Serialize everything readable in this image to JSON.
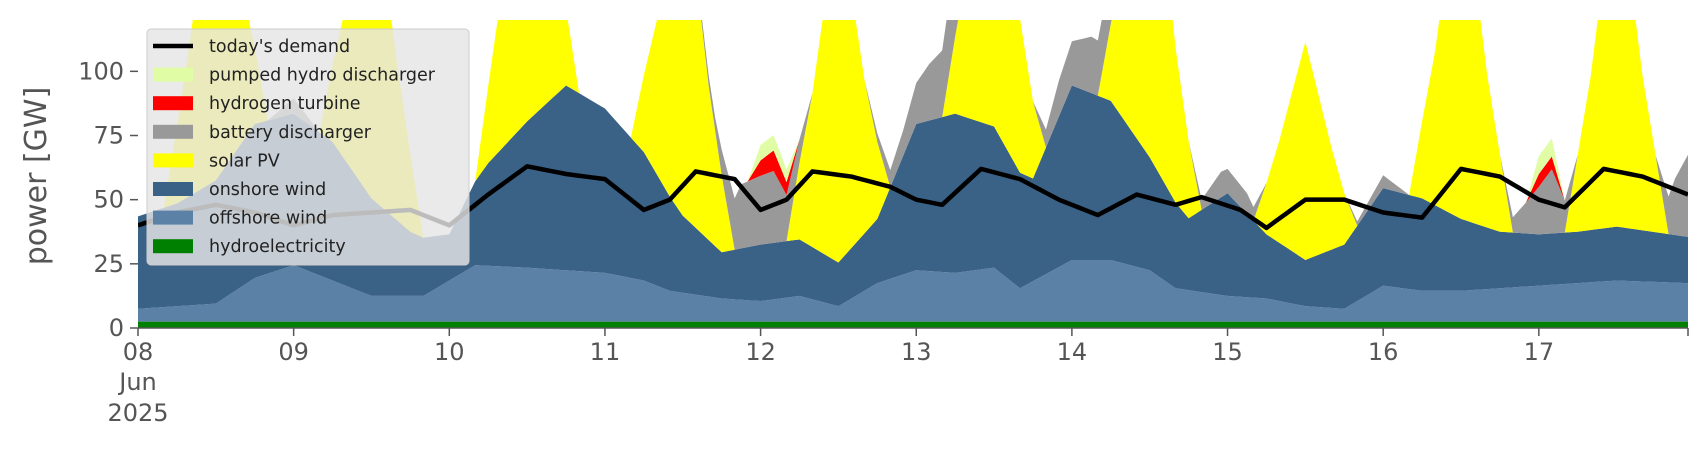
{
  "chart_data": {
    "type": "area",
    "stacked": true,
    "title": "",
    "xlabel": "",
    "ylabel": "power [GW]",
    "x_start": "2025-06-08T00:00",
    "x_end": "2025-06-17T23:00",
    "xlim": [
      "2025-06-08",
      "2025-06-17T23:00"
    ],
    "ylim": [
      0,
      120
    ],
    "yticks": [
      0,
      25,
      50,
      75,
      100
    ],
    "xtick_labels": [
      {
        "date": "2025-06-08",
        "label": "08",
        "sublabel": "Jun",
        "sublabel2": "2025"
      },
      {
        "date": "2025-06-09",
        "label": "09"
      },
      {
        "date": "2025-06-10",
        "label": "10"
      },
      {
        "date": "2025-06-11",
        "label": "11"
      },
      {
        "date": "2025-06-12",
        "label": "12"
      },
      {
        "date": "2025-06-13",
        "label": "13"
      },
      {
        "date": "2025-06-14",
        "label": "14"
      },
      {
        "date": "2025-06-15",
        "label": "15"
      },
      {
        "date": "2025-06-16",
        "label": "16"
      },
      {
        "date": "2025-06-17",
        "label": "17"
      }
    ],
    "grid": false,
    "legend_position": "top-left",
    "series": [
      {
        "name": "hydroelectricity",
        "color": "#008000",
        "points": [
          [
            "2025-06-08T00:00",
            2.5
          ],
          [
            "2025-06-17T23:00",
            2.5
          ]
        ]
      },
      {
        "name": "offshore wind",
        "color": "#5b82a6",
        "points": [
          [
            "2025-06-08T00:00",
            5
          ],
          [
            "2025-06-08T12:00",
            7
          ],
          [
            "2025-06-08T18:00",
            17
          ],
          [
            "2025-06-09T00:00",
            22
          ],
          [
            "2025-06-09T06:00",
            16
          ],
          [
            "2025-06-09T12:00",
            10
          ],
          [
            "2025-06-09T20:00",
            10
          ],
          [
            "2025-06-10T04:00",
            22
          ],
          [
            "2025-06-10T12:00",
            21
          ],
          [
            "2025-06-10T18:00",
            20
          ],
          [
            "2025-06-11T00:00",
            19
          ],
          [
            "2025-06-11T06:00",
            16
          ],
          [
            "2025-06-11T10:00",
            12
          ],
          [
            "2025-06-11T18:00",
            9
          ],
          [
            "2025-06-12T00:00",
            8
          ],
          [
            "2025-06-12T06:00",
            10
          ],
          [
            "2025-06-12T12:00",
            6
          ],
          [
            "2025-06-12T18:00",
            15
          ],
          [
            "2025-06-13T00:00",
            20
          ],
          [
            "2025-06-13T06:00",
            19
          ],
          [
            "2025-06-13T12:00",
            21
          ],
          [
            "2025-06-13T16:00",
            13
          ],
          [
            "2025-06-14T00:00",
            24
          ],
          [
            "2025-06-14T06:00",
            24
          ],
          [
            "2025-06-14T12:00",
            20
          ],
          [
            "2025-06-14T16:00",
            13
          ],
          [
            "2025-06-15T00:00",
            10
          ],
          [
            "2025-06-15T06:00",
            9
          ],
          [
            "2025-06-15T12:00",
            6
          ],
          [
            "2025-06-15T18:00",
            5
          ],
          [
            "2025-06-16T00:00",
            14
          ],
          [
            "2025-06-16T06:00",
            12
          ],
          [
            "2025-06-16T12:00",
            12
          ],
          [
            "2025-06-17T00:00",
            14
          ],
          [
            "2025-06-17T06:00",
            15
          ],
          [
            "2025-06-17T12:00",
            16
          ],
          [
            "2025-06-17T23:00",
            15
          ]
        ]
      },
      {
        "name": "onshore wind",
        "color": "#3a6186",
        "points": [
          [
            "2025-06-08T00:00",
            36
          ],
          [
            "2025-06-08T06:00",
            40
          ],
          [
            "2025-06-08T12:00",
            48
          ],
          [
            "2025-06-08T18:00",
            60
          ],
          [
            "2025-06-09T00:00",
            59
          ],
          [
            "2025-06-09T06:00",
            54
          ],
          [
            "2025-06-09T12:00",
            38
          ],
          [
            "2025-06-09T18:00",
            25
          ],
          [
            "2025-06-10T00:00",
            18
          ],
          [
            "2025-06-10T06:00",
            40
          ],
          [
            "2025-06-10T12:00",
            57
          ],
          [
            "2025-06-10T18:00",
            72
          ],
          [
            "2025-06-11T00:00",
            64
          ],
          [
            "2025-06-11T06:00",
            50
          ],
          [
            "2025-06-11T12:00",
            30
          ],
          [
            "2025-06-11T18:00",
            18
          ],
          [
            "2025-06-12T00:00",
            22
          ],
          [
            "2025-06-12T06:00",
            22
          ],
          [
            "2025-06-12T12:00",
            17
          ],
          [
            "2025-06-12T18:00",
            25
          ],
          [
            "2025-06-13T00:00",
            57
          ],
          [
            "2025-06-13T06:00",
            62
          ],
          [
            "2025-06-13T12:00",
            55
          ],
          [
            "2025-06-13T18:00",
            40
          ],
          [
            "2025-06-14T00:00",
            68
          ],
          [
            "2025-06-14T06:00",
            62
          ],
          [
            "2025-06-14T12:00",
            44
          ],
          [
            "2025-06-14T18:00",
            28
          ],
          [
            "2025-06-15T00:00",
            40
          ],
          [
            "2025-06-15T06:00",
            25
          ],
          [
            "2025-06-15T12:00",
            18
          ],
          [
            "2025-06-15T18:00",
            25
          ],
          [
            "2025-06-16T00:00",
            38
          ],
          [
            "2025-06-16T06:00",
            36
          ],
          [
            "2025-06-16T12:00",
            28
          ],
          [
            "2025-06-16T18:00",
            22
          ],
          [
            "2025-06-17T00:00",
            20
          ],
          [
            "2025-06-17T06:00",
            20
          ],
          [
            "2025-06-17T12:00",
            21
          ],
          [
            "2025-06-17T23:00",
            18
          ]
        ]
      },
      {
        "name": "solar PV",
        "color": "#ffff00",
        "points": [
          [
            "2025-06-08T00:00",
            0
          ],
          [
            "2025-06-08T04:00",
            0
          ],
          [
            "2025-06-08T08:00",
            60
          ],
          [
            "2025-06-08T12:00",
            130
          ],
          [
            "2025-06-08T16:00",
            60
          ],
          [
            "2025-06-08T20:00",
            0
          ],
          [
            "2025-06-09T04:00",
            0
          ],
          [
            "2025-06-09T08:00",
            60
          ],
          [
            "2025-06-09T12:00",
            130
          ],
          [
            "2025-06-09T16:00",
            60
          ],
          [
            "2025-06-09T20:00",
            0
          ],
          [
            "2025-06-10T04:00",
            0
          ],
          [
            "2025-06-10T08:00",
            60
          ],
          [
            "2025-06-10T12:00",
            140
          ],
          [
            "2025-06-10T16:00",
            60
          ],
          [
            "2025-06-10T20:00",
            0
          ],
          [
            "2025-06-11T04:00",
            0
          ],
          [
            "2025-06-11T08:00",
            60
          ],
          [
            "2025-06-11T12:00",
            140
          ],
          [
            "2025-06-11T16:00",
            60
          ],
          [
            "2025-06-11T20:00",
            0
          ],
          [
            "2025-06-12T04:00",
            0
          ],
          [
            "2025-06-12T08:00",
            60
          ],
          [
            "2025-06-12T12:00",
            140
          ],
          [
            "2025-06-12T16:00",
            60
          ],
          [
            "2025-06-12T20:00",
            0
          ],
          [
            "2025-06-13T04:00",
            0
          ],
          [
            "2025-06-13T08:00",
            60
          ],
          [
            "2025-06-13T12:00",
            140
          ],
          [
            "2025-06-13T16:00",
            60
          ],
          [
            "2025-06-13T20:00",
            0
          ],
          [
            "2025-06-14T04:00",
            0
          ],
          [
            "2025-06-14T08:00",
            60
          ],
          [
            "2025-06-14T12:00",
            140
          ],
          [
            "2025-06-14T16:00",
            60
          ],
          [
            "2025-06-14T20:00",
            0
          ],
          [
            "2025-06-15T04:00",
            0
          ],
          [
            "2025-06-15T08:00",
            40
          ],
          [
            "2025-06-15T12:00",
            85
          ],
          [
            "2025-06-15T16:00",
            40
          ],
          [
            "2025-06-15T20:00",
            0
          ],
          [
            "2025-06-16T04:00",
            0
          ],
          [
            "2025-06-16T08:00",
            60
          ],
          [
            "2025-06-16T12:00",
            140
          ],
          [
            "2025-06-16T16:00",
            60
          ],
          [
            "2025-06-16T20:00",
            0
          ],
          [
            "2025-06-17T04:00",
            0
          ],
          [
            "2025-06-17T08:00",
            60
          ],
          [
            "2025-06-17T12:00",
            140
          ],
          [
            "2025-06-17T16:00",
            60
          ],
          [
            "2025-06-17T20:00",
            0
          ],
          [
            "2025-06-17T23:00",
            0
          ]
        ]
      },
      {
        "name": "battery discharger",
        "color": "#999999",
        "points": [
          [
            "2025-06-08T00:00",
            0
          ],
          [
            "2025-06-08T20:00",
            0
          ],
          [
            "2025-06-09T00:00",
            6
          ],
          [
            "2025-06-09T04:00",
            0
          ],
          [
            "2025-06-11T12:00",
            0
          ],
          [
            "2025-06-11T17:00",
            5
          ],
          [
            "2025-06-11T21:00",
            25
          ],
          [
            "2025-06-12T02:00",
            28
          ],
          [
            "2025-06-12T04:00",
            18
          ],
          [
            "2025-06-12T08:00",
            0
          ],
          [
            "2025-06-12T16:00",
            0
          ],
          [
            "2025-06-12T22:00",
            10
          ],
          [
            "2025-06-13T02:00",
            22
          ],
          [
            "2025-06-13T06:00",
            30
          ],
          [
            "2025-06-13T09:00",
            0
          ],
          [
            "2025-06-13T18:00",
            0
          ],
          [
            "2025-06-13T22:00",
            14
          ],
          [
            "2025-06-14T03:00",
            22
          ],
          [
            "2025-06-14T07:00",
            20
          ],
          [
            "2025-06-14T10:00",
            0
          ],
          [
            "2025-06-14T18:00",
            0
          ],
          [
            "2025-06-14T23:00",
            10
          ],
          [
            "2025-06-15T03:00",
            8
          ],
          [
            "2025-06-15T06:00",
            0
          ],
          [
            "2025-06-15T18:00",
            0
          ],
          [
            "2025-06-16T00:00",
            5
          ],
          [
            "2025-06-16T04:00",
            0
          ],
          [
            "2025-06-16T18:00",
            0
          ],
          [
            "2025-06-16T22:00",
            12
          ],
          [
            "2025-06-17T02:00",
            25
          ],
          [
            "2025-06-17T06:00",
            0
          ],
          [
            "2025-06-17T18:00",
            0
          ],
          [
            "2025-06-17T21:00",
            22
          ],
          [
            "2025-06-17T23:00",
            32
          ]
        ]
      },
      {
        "name": "hydrogen turbine",
        "color": "#ff0000",
        "points": [
          [
            "2025-06-08T00:00",
            0
          ],
          [
            "2025-06-11T22:00",
            0
          ],
          [
            "2025-06-12T00:00",
            6
          ],
          [
            "2025-06-12T02:00",
            8
          ],
          [
            "2025-06-12T04:00",
            5
          ],
          [
            "2025-06-12T06:00",
            0
          ],
          [
            "2025-06-16T22:00",
            0
          ],
          [
            "2025-06-17T00:00",
            5
          ],
          [
            "2025-06-17T02:00",
            5
          ],
          [
            "2025-06-17T04:00",
            0
          ],
          [
            "2025-06-17T23:00",
            0
          ]
        ]
      },
      {
        "name": "pumped hydro discharger",
        "color": "#e0fda5",
        "points": [
          [
            "2025-06-08T00:00",
            0
          ],
          [
            "2025-06-11T22:00",
            0
          ],
          [
            "2025-06-12T00:00",
            6
          ],
          [
            "2025-06-12T02:00",
            6
          ],
          [
            "2025-06-12T04:00",
            5
          ],
          [
            "2025-06-12T06:00",
            0
          ],
          [
            "2025-06-16T22:00",
            0
          ],
          [
            "2025-06-17T00:00",
            7
          ],
          [
            "2025-06-17T02:00",
            7
          ],
          [
            "2025-06-17T04:00",
            0
          ],
          [
            "2025-06-17T23:00",
            0
          ]
        ]
      }
    ],
    "lines": [
      {
        "name": "today's demand",
        "color": "#000000",
        "points": [
          [
            "2025-06-08T00:00",
            40
          ],
          [
            "2025-06-08T06:00",
            45
          ],
          [
            "2025-06-08T12:00",
            48
          ],
          [
            "2025-06-08T18:00",
            45
          ],
          [
            "2025-06-09T00:00",
            40
          ],
          [
            "2025-06-09T06:00",
            44
          ],
          [
            "2025-06-09T12:00",
            45
          ],
          [
            "2025-06-09T18:00",
            46
          ],
          [
            "2025-06-10T00:00",
            40
          ],
          [
            "2025-06-10T06:00",
            52
          ],
          [
            "2025-06-10T12:00",
            63
          ],
          [
            "2025-06-10T18:00",
            60
          ],
          [
            "2025-06-11T00:00",
            58
          ],
          [
            "2025-06-11T06:00",
            46
          ],
          [
            "2025-06-11T10:00",
            50
          ],
          [
            "2025-06-11T14:00",
            61
          ],
          [
            "2025-06-11T20:00",
            58
          ],
          [
            "2025-06-12T00:00",
            46
          ],
          [
            "2025-06-12T04:00",
            50
          ],
          [
            "2025-06-12T08:00",
            61
          ],
          [
            "2025-06-12T14:00",
            59
          ],
          [
            "2025-06-12T20:00",
            55
          ],
          [
            "2025-06-13T00:00",
            50
          ],
          [
            "2025-06-13T04:00",
            48
          ],
          [
            "2025-06-13T10:00",
            62
          ],
          [
            "2025-06-13T16:00",
            58
          ],
          [
            "2025-06-13T22:00",
            50
          ],
          [
            "2025-06-14T04:00",
            44
          ],
          [
            "2025-06-14T10:00",
            52
          ],
          [
            "2025-06-14T16:00",
            48
          ],
          [
            "2025-06-14T20:00",
            51
          ],
          [
            "2025-06-15T02:00",
            46
          ],
          [
            "2025-06-15T06:00",
            39
          ],
          [
            "2025-06-15T12:00",
            50
          ],
          [
            "2025-06-15T18:00",
            50
          ],
          [
            "2025-06-16T00:00",
            45
          ],
          [
            "2025-06-16T06:00",
            43
          ],
          [
            "2025-06-16T12:00",
            62
          ],
          [
            "2025-06-16T18:00",
            59
          ],
          [
            "2025-06-17T00:00",
            50
          ],
          [
            "2025-06-17T04:00",
            47
          ],
          [
            "2025-06-17T10:00",
            62
          ],
          [
            "2025-06-17T16:00",
            59
          ],
          [
            "2025-06-17T23:00",
            52
          ]
        ]
      }
    ],
    "legend": [
      {
        "label": "today's demand",
        "color": "#000000",
        "kind": "line"
      },
      {
        "label": "pumped hydro discharger",
        "color": "#e0fda5",
        "kind": "patch"
      },
      {
        "label": "hydrogen turbine",
        "color": "#ff0000",
        "kind": "patch"
      },
      {
        "label": "battery discharger",
        "color": "#999999",
        "kind": "patch"
      },
      {
        "label": "solar PV",
        "color": "#ffff00",
        "kind": "patch"
      },
      {
        "label": "onshore wind",
        "color": "#3a6186",
        "kind": "patch"
      },
      {
        "label": "offshore wind",
        "color": "#5b82a6",
        "kind": "patch"
      },
      {
        "label": "hydroelectricity",
        "color": "#008000",
        "kind": "patch"
      }
    ]
  }
}
